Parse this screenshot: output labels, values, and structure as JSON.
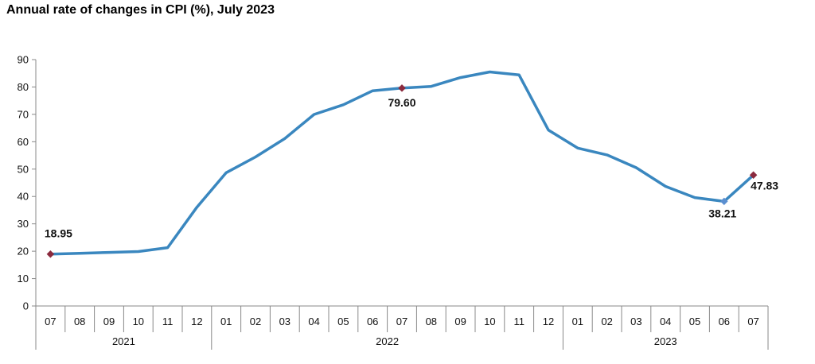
{
  "chart_data": {
    "type": "line",
    "title": "Annual rate of changes in CPI (%), July 2023",
    "xlabel": "",
    "ylabel": "",
    "ylim": [
      0,
      90
    ],
    "yticks": [
      0,
      10,
      20,
      30,
      40,
      50,
      60,
      70,
      80,
      90
    ],
    "grid": false,
    "legend": "none",
    "categories": [
      "07",
      "08",
      "09",
      "10",
      "11",
      "12",
      "01",
      "02",
      "03",
      "04",
      "05",
      "06",
      "07",
      "08",
      "09",
      "10",
      "11",
      "12",
      "01",
      "02",
      "03",
      "04",
      "05",
      "06",
      "07"
    ],
    "year_groups": [
      {
        "label": "2021",
        "start": 0,
        "count": 6
      },
      {
        "label": "2022",
        "start": 6,
        "count": 12
      },
      {
        "label": "2023",
        "start": 18,
        "count": 7
      }
    ],
    "series": [
      {
        "color": "#3a87bf",
        "values": [
          18.95,
          19.25,
          19.58,
          19.89,
          21.31,
          36.08,
          48.69,
          54.44,
          61.14,
          69.97,
          73.5,
          78.62,
          79.6,
          80.21,
          83.45,
          85.51,
          84.39,
          64.27,
          57.68,
          55.18,
          50.51,
          43.68,
          39.59,
          38.21,
          47.83
        ]
      }
    ],
    "annotations": [
      {
        "index": 0,
        "text": "18.95",
        "marker_color": "#8b2a3e"
      },
      {
        "index": 12,
        "text": "79.60",
        "marker_color": "#8b2a3e"
      },
      {
        "index": 23,
        "text": "38.21",
        "marker_color": "#5b8fd0"
      },
      {
        "index": 24,
        "text": "47.83",
        "marker_color": "#8b2a3e"
      }
    ]
  }
}
